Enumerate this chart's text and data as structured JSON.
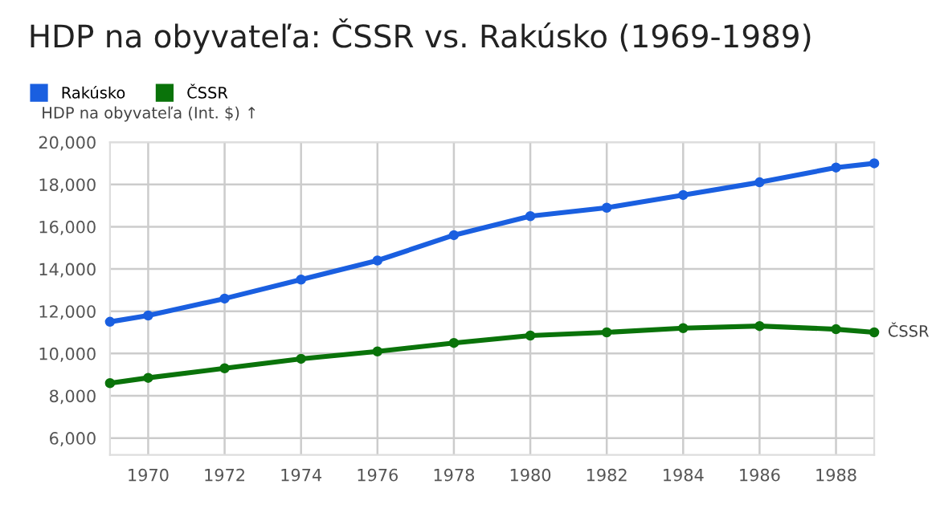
{
  "chart_data": {
    "type": "line",
    "title": "HDP na obyvateľa: ČSSR vs. Rakúsko (1969-1989)",
    "ylabel": "HDP na obyvateľa (Int. $) ↑",
    "x": [
      1969,
      1970,
      1972,
      1974,
      1976,
      1978,
      1980,
      1982,
      1984,
      1986,
      1988,
      1989
    ],
    "series": [
      {
        "name": "Rakúsko",
        "color": "#1a5fe0",
        "values": [
          11500,
          11800,
          12600,
          13500,
          14400,
          15600,
          16500,
          16900,
          17500,
          18100,
          18800,
          19000
        ]
      },
      {
        "name": "ČSSR",
        "color": "#0a730a",
        "values": [
          8600,
          8850,
          9300,
          9750,
          10100,
          10500,
          10850,
          11000,
          11200,
          11300,
          11150,
          11000
        ]
      }
    ],
    "annotations": [
      {
        "text": "ČSSR",
        "x": 1989,
        "y": 11000
      }
    ],
    "xlim": [
      1969,
      1989
    ],
    "xticks": [
      1970,
      1972,
      1974,
      1976,
      1978,
      1980,
      1982,
      1984,
      1986,
      1988
    ],
    "ylim": [
      5200,
      20000
    ],
    "yticks": [
      {
        "value": 6000,
        "label": "6,000"
      },
      {
        "value": 8000,
        "label": "8,000"
      },
      {
        "value": 10000,
        "label": "10,000"
      },
      {
        "value": 12000,
        "label": "12,000"
      },
      {
        "value": 14000,
        "label": "14,000"
      },
      {
        "value": 16000,
        "label": "16,000"
      },
      {
        "value": 18000,
        "label": "18,000"
      },
      {
        "value": 20000,
        "label": "20,000"
      }
    ],
    "grid": true,
    "legend": "top left",
    "marker": "circle",
    "line_style": "solid"
  }
}
